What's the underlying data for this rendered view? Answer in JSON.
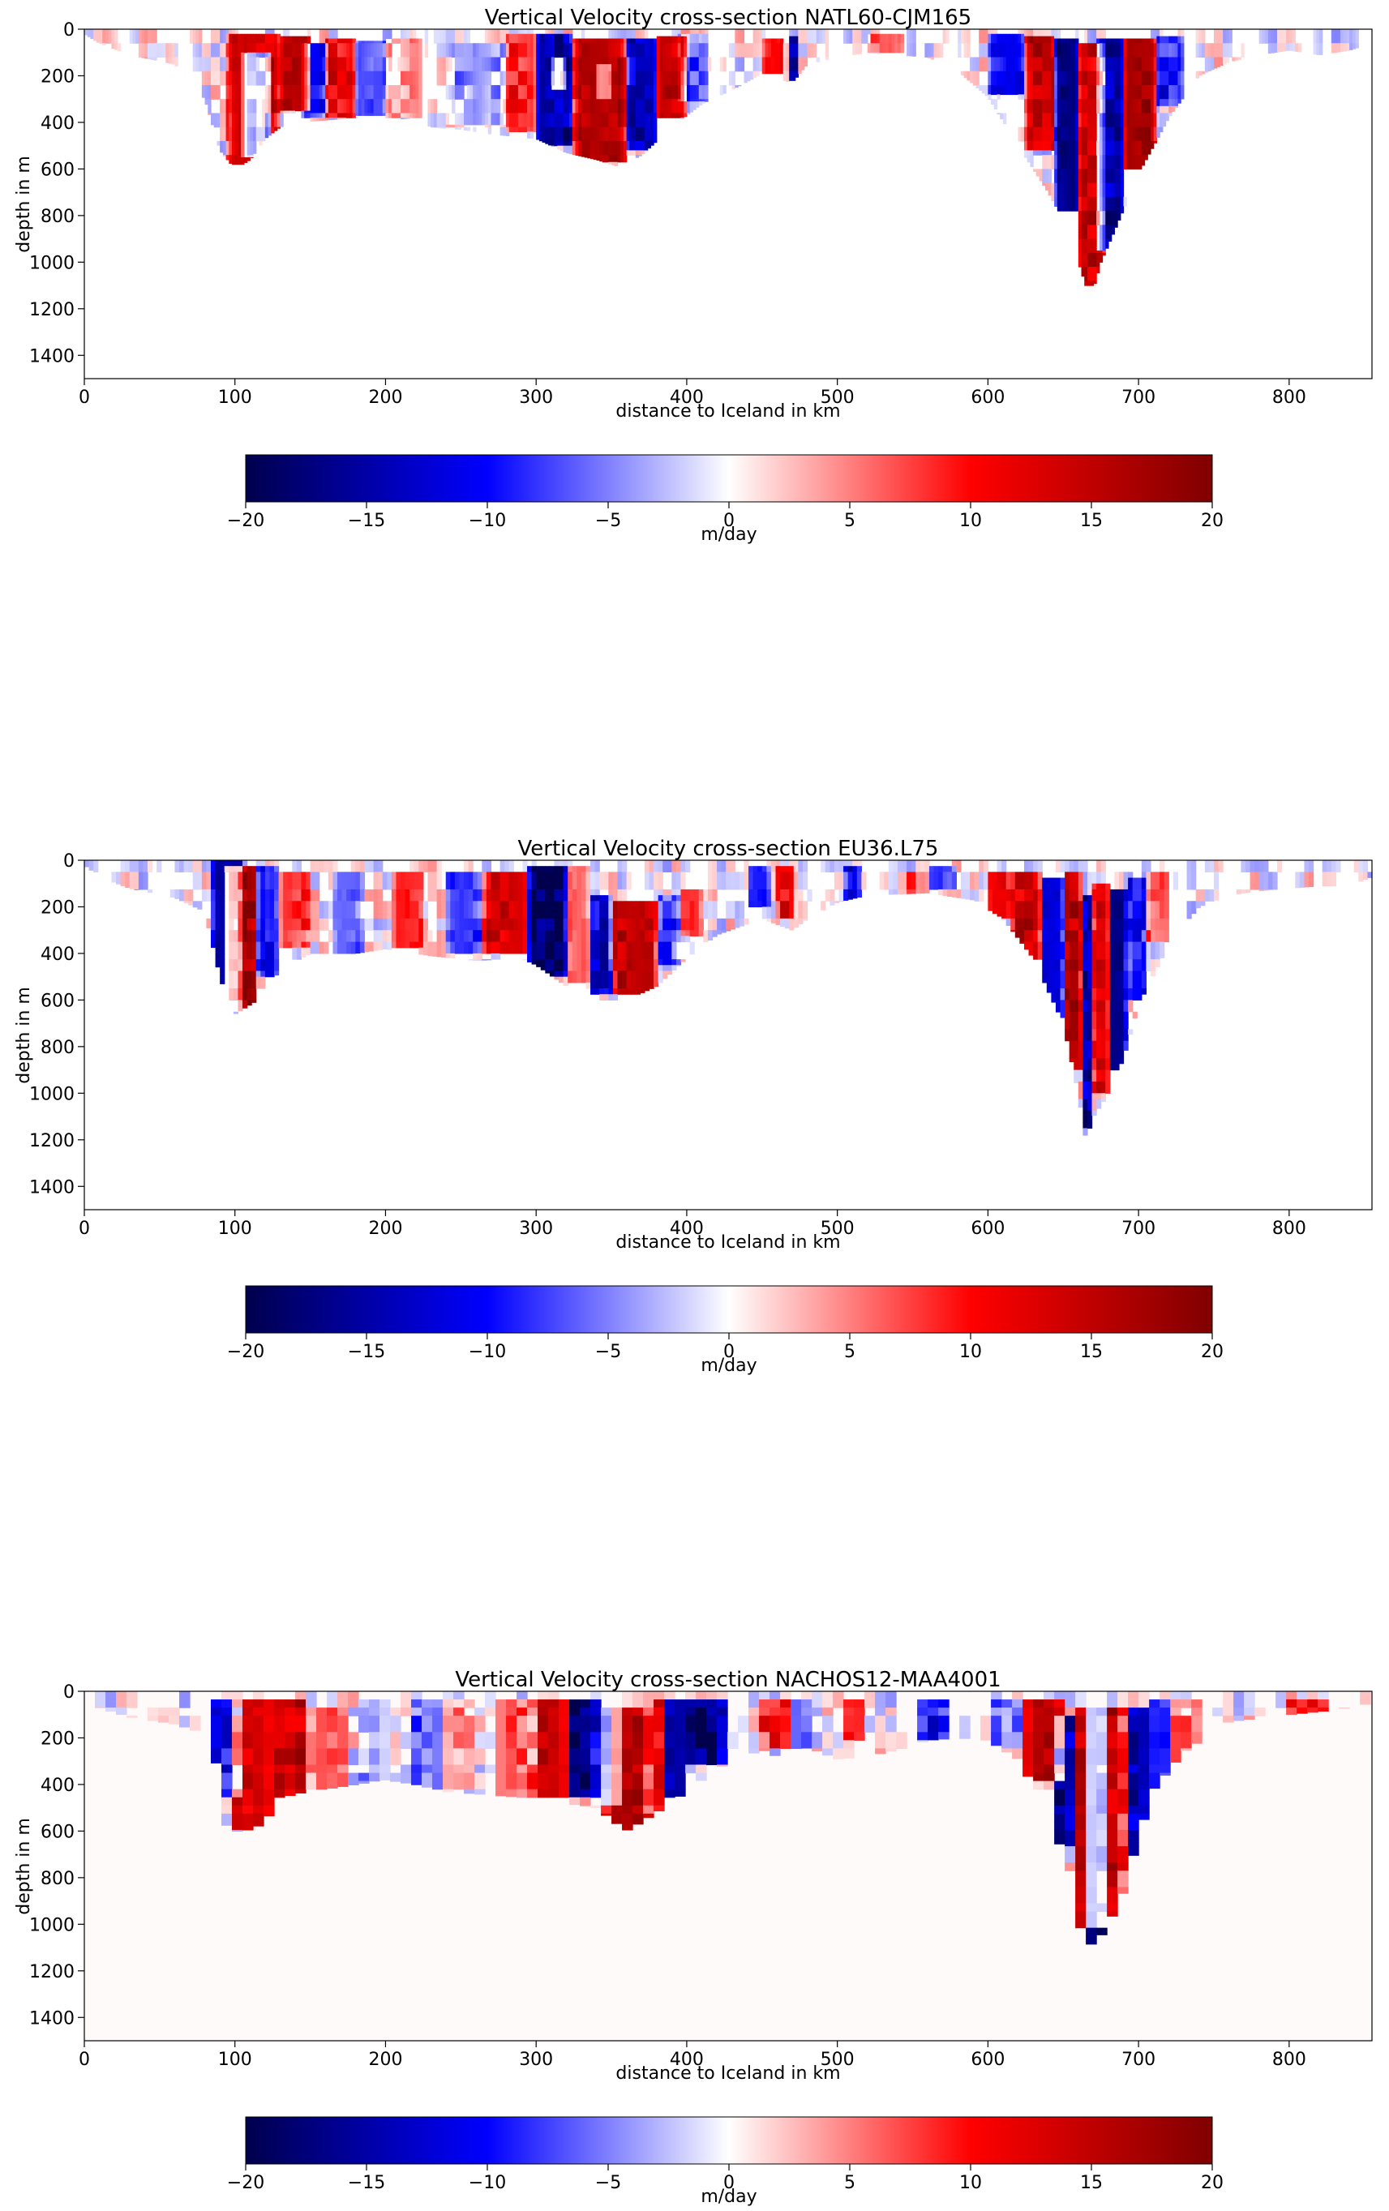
{
  "figure": {
    "colormap": "seismic",
    "colorbar_stops": [
      "#00004d",
      "#0000ff",
      "#ffffff",
      "#ff0000",
      "#800000"
    ]
  },
  "chart_data": [
    {
      "type": "heatmap",
      "title": "Vertical Velocity cross-section NATL60-CJM165",
      "xlabel": "distance to Iceland in km",
      "ylabel": "depth in m",
      "xlim": [
        0,
        855
      ],
      "ylim": [
        1500,
        0
      ],
      "xticks": [
        0,
        100,
        200,
        300,
        400,
        500,
        600,
        700,
        800
      ],
      "yticks": [
        0,
        200,
        400,
        600,
        800,
        1000,
        1200,
        1400
      ],
      "y_inverted": true,
      "colorbar": {
        "label": "m/day",
        "vmin": -20,
        "vmax": 20,
        "ticks": [
          -20,
          -15,
          -10,
          -5,
          0,
          5,
          10,
          15,
          20
        ]
      },
      "resolution": {
        "dx_km": 2,
        "dz_m": 10
      },
      "background_color": "#ffffff",
      "bathymetry": {
        "x": [
          0,
          10,
          30,
          60,
          80,
          90,
          100,
          110,
          120,
          130,
          140,
          160,
          180,
          200,
          220,
          230,
          250,
          270,
          300,
          320,
          340,
          355,
          370,
          390,
          410,
          430,
          450,
          470,
          480,
          500,
          520,
          560,
          580,
          600,
          620,
          640,
          650,
          660,
          668,
          675,
          685,
          700,
          720,
          740,
          760,
          780,
          800,
          820,
          840,
          855
        ],
        "depth": [
          20,
          60,
          110,
          150,
          300,
          520,
          600,
          560,
          470,
          420,
          400,
          390,
          380,
          390,
          380,
          420,
          430,
          450,
          470,
          530,
          560,
          590,
          540,
          420,
          320,
          260,
          190,
          230,
          150,
          120,
          100,
          120,
          180,
          290,
          500,
          700,
          820,
          1000,
          1160,
          1000,
          850,
          620,
          380,
          200,
          140,
          110,
          90,
          110,
          90,
          60
        ]
      },
      "cells": [
        [
          95,
          130,
          20,
          580,
          14
        ],
        [
          105,
          125,
          100,
          550,
          -16
        ],
        [
          130,
          150,
          30,
          350,
          16
        ],
        [
          145,
          160,
          60,
          380,
          -9
        ],
        [
          160,
          180,
          40,
          380,
          12
        ],
        [
          180,
          200,
          50,
          370,
          -7
        ],
        [
          200,
          225,
          40,
          380,
          5
        ],
        [
          240,
          280,
          60,
          410,
          -4
        ],
        [
          280,
          300,
          20,
          440,
          9
        ],
        [
          300,
          325,
          20,
          500,
          -15
        ],
        [
          310,
          320,
          120,
          260,
          13
        ],
        [
          325,
          360,
          40,
          570,
          16
        ],
        [
          340,
          350,
          150,
          300,
          -12
        ],
        [
          360,
          380,
          40,
          520,
          -14
        ],
        [
          380,
          400,
          30,
          380,
          15
        ],
        [
          395,
          415,
          20,
          310,
          -6
        ],
        [
          450,
          465,
          40,
          190,
          10
        ],
        [
          468,
          475,
          30,
          220,
          -13
        ],
        [
          520,
          545,
          20,
          100,
          6
        ],
        [
          600,
          625,
          20,
          280,
          -11
        ],
        [
          625,
          645,
          30,
          520,
          15
        ],
        [
          645,
          660,
          40,
          780,
          -17
        ],
        [
          660,
          678,
          60,
          1100,
          14
        ],
        [
          672,
          690,
          40,
          950,
          -15
        ],
        [
          690,
          712,
          40,
          600,
          17
        ],
        [
          712,
          730,
          30,
          330,
          -9
        ]
      ]
    },
    {
      "type": "heatmap",
      "title": "Vertical Velocity cross-section EU36.L75",
      "xlabel": "distance to Iceland in km",
      "ylabel": "depth in m",
      "xlim": [
        0,
        855
      ],
      "ylim": [
        1500,
        0
      ],
      "xticks": [
        0,
        100,
        200,
        300,
        400,
        500,
        600,
        700,
        800
      ],
      "yticks": [
        0,
        200,
        400,
        600,
        800,
        1000,
        1200,
        1400
      ],
      "y_inverted": true,
      "colorbar": {
        "label": "m/day",
        "vmin": -20,
        "vmax": 20,
        "ticks": [
          -20,
          -15,
          -10,
          -5,
          0,
          5,
          10,
          15,
          20
        ]
      },
      "resolution": {
        "dx_km": 3,
        "dz_m": 25
      },
      "background_color": "#ffffff",
      "bathymetry": {
        "x": [
          0,
          10,
          30,
          60,
          80,
          90,
          95,
          100,
          110,
          115,
          120,
          130,
          150,
          180,
          200,
          230,
          260,
          290,
          300,
          320,
          340,
          360,
          380,
          400,
          420,
          450,
          470,
          480,
          500,
          520,
          560,
          590,
          610,
          630,
          650,
          660,
          665,
          670,
          680,
          690,
          700,
          720,
          740,
          760,
          780,
          800,
          820,
          840,
          855
        ],
        "depth": [
          20,
          70,
          120,
          160,
          220,
          500,
          600,
          660,
          620,
          600,
          560,
          470,
          400,
          400,
          380,
          410,
          430,
          420,
          450,
          540,
          600,
          600,
          540,
          420,
          320,
          250,
          300,
          250,
          180,
          150,
          140,
          170,
          250,
          420,
          700,
          1000,
          1200,
          1100,
          1000,
          850,
          620,
          360,
          200,
          150,
          130,
          120,
          110,
          110,
          70
        ]
      },
      "cells": [
        [
          85,
          105,
          10,
          640,
          -15
        ],
        [
          92,
          115,
          20,
          650,
          17
        ],
        [
          115,
          128,
          20,
          500,
          -11
        ],
        [
          130,
          150,
          50,
          380,
          8
        ],
        [
          165,
          185,
          60,
          400,
          -6
        ],
        [
          205,
          225,
          40,
          380,
          9
        ],
        [
          240,
          265,
          60,
          400,
          -8
        ],
        [
          265,
          295,
          40,
          400,
          13
        ],
        [
          295,
          320,
          30,
          500,
          -19
        ],
        [
          320,
          335,
          20,
          520,
          6
        ],
        [
          335,
          350,
          150,
          570,
          -12
        ],
        [
          350,
          380,
          180,
          580,
          15
        ],
        [
          380,
          395,
          150,
          450,
          -7
        ],
        [
          395,
          410,
          120,
          330,
          8
        ],
        [
          440,
          455,
          20,
          200,
          -9
        ],
        [
          460,
          470,
          30,
          260,
          12
        ],
        [
          505,
          515,
          30,
          240,
          -13
        ],
        [
          545,
          560,
          60,
          150,
          6
        ],
        [
          560,
          580,
          20,
          120,
          -8
        ],
        [
          600,
          615,
          40,
          250,
          11
        ],
        [
          615,
          635,
          60,
          420,
          14
        ],
        [
          635,
          650,
          80,
          680,
          -12
        ],
        [
          650,
          662,
          60,
          900,
          16
        ],
        [
          662,
          670,
          150,
          1150,
          -15
        ],
        [
          670,
          680,
          100,
          1000,
          13
        ],
        [
          680,
          692,
          120,
          900,
          -17
        ],
        [
          692,
          705,
          80,
          600,
          -9
        ],
        [
          705,
          720,
          50,
          350,
          7
        ]
      ]
    },
    {
      "type": "heatmap",
      "title": "Vertical Velocity cross-section NACHOS12-MAA4001",
      "xlabel": "distance to Iceland in km",
      "ylabel": "depth in m",
      "xlim": [
        0,
        855
      ],
      "ylim": [
        1500,
        0
      ],
      "xticks": [
        0,
        100,
        200,
        300,
        400,
        500,
        600,
        700,
        800
      ],
      "yticks": [
        0,
        200,
        400,
        600,
        800,
        1000,
        1200,
        1400
      ],
      "y_inverted": true,
      "colorbar": {
        "label": "m/day",
        "vmin": -20,
        "vmax": 20,
        "ticks": [
          -20,
          -15,
          -10,
          -5,
          0,
          5,
          10,
          15,
          20
        ]
      },
      "resolution": {
        "dx_km": 7,
        "dz_m": 35
      },
      "background_color": "#fffafa",
      "bathymetry": {
        "x": [
          0,
          10,
          30,
          60,
          80,
          90,
          95,
          100,
          110,
          120,
          130,
          140,
          160,
          180,
          200,
          220,
          240,
          260,
          280,
          300,
          320,
          340,
          360,
          380,
          400,
          420,
          450,
          470,
          480,
          500,
          520,
          540,
          560,
          580,
          600,
          620,
          640,
          650,
          660,
          670,
          680,
          690,
          700,
          710,
          730,
          760,
          800,
          830,
          855
        ],
        "depth": [
          20,
          70,
          110,
          140,
          180,
          350,
          600,
          600,
          600,
          560,
          460,
          440,
          420,
          400,
          380,
          400,
          430,
          440,
          450,
          460,
          480,
          500,
          600,
          520,
          430,
          330,
          250,
          310,
          240,
          290,
          280,
          250,
          210,
          200,
          210,
          290,
          520,
          700,
          1000,
          1100,
          1000,
          860,
          620,
          420,
          260,
          130,
          100,
          80,
          50
        ]
      },
      "cells": [
        [
          85,
          105,
          40,
          460,
          -11
        ],
        [
          98,
          125,
          30,
          600,
          13
        ],
        [
          125,
          150,
          40,
          440,
          15
        ],
        [
          150,
          175,
          60,
          420,
          7
        ],
        [
          180,
          200,
          40,
          390,
          -3
        ],
        [
          215,
          240,
          50,
          420,
          -5
        ],
        [
          240,
          260,
          40,
          420,
          4
        ],
        [
          275,
          300,
          40,
          440,
          7
        ],
        [
          300,
          320,
          30,
          440,
          14
        ],
        [
          320,
          340,
          40,
          460,
          -19
        ],
        [
          340,
          355,
          60,
          480,
          -14
        ],
        [
          345,
          375,
          70,
          580,
          16
        ],
        [
          375,
          385,
          40,
          520,
          12
        ],
        [
          385,
          400,
          40,
          450,
          -15
        ],
        [
          400,
          425,
          40,
          330,
          -18
        ],
        [
          450,
          470,
          30,
          260,
          11
        ],
        [
          470,
          485,
          30,
          230,
          -6
        ],
        [
          505,
          520,
          30,
          200,
          9
        ],
        [
          555,
          575,
          20,
          200,
          -10
        ],
        [
          600,
          625,
          20,
          240,
          -6
        ],
        [
          625,
          650,
          40,
          380,
          16
        ],
        [
          645,
          660,
          100,
          650,
          -15
        ],
        [
          655,
          690,
          60,
          1000,
          15
        ],
        [
          665,
          680,
          80,
          1100,
          -17
        ],
        [
          690,
          705,
          60,
          850,
          -14
        ],
        [
          705,
          720,
          40,
          420,
          -9
        ],
        [
          720,
          740,
          40,
          300,
          6
        ],
        [
          800,
          825,
          40,
          150,
          10
        ]
      ]
    }
  ]
}
